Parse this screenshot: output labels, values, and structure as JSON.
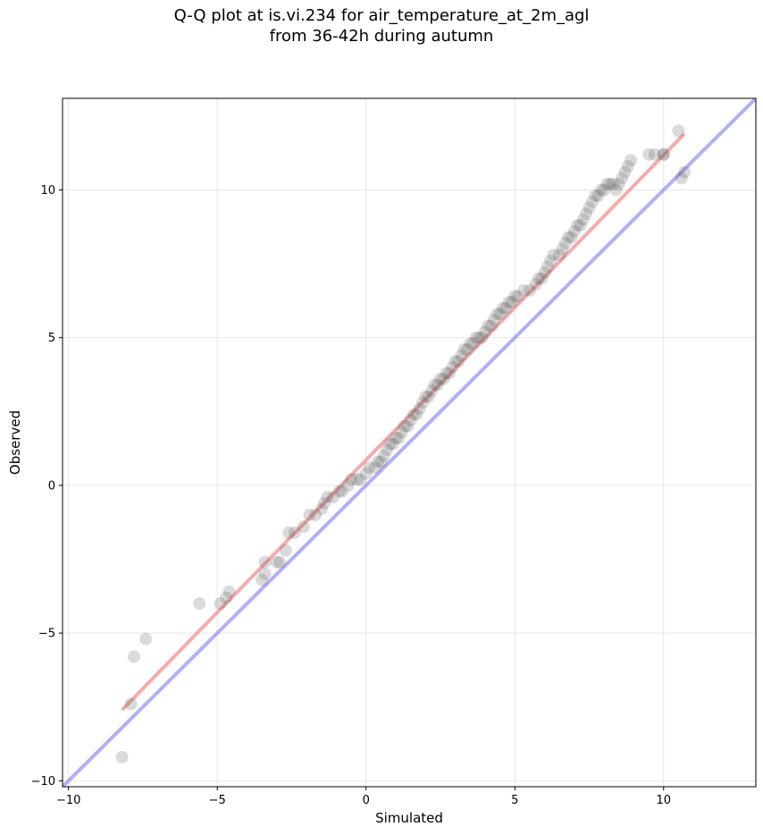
{
  "chart_data": {
    "type": "scatter",
    "title": "Q-Q plot at is.vi.234 for air_temperature_at_2m_agl",
    "subtitle": "from 36-42h during autumn",
    "xlabel": "Simulated",
    "ylabel": "Observed",
    "xlim": [
      -10.2,
      13.1
    ],
    "ylim": [
      -10.2,
      13.1
    ],
    "x_ticks": [
      -10,
      -5,
      0,
      5,
      10
    ],
    "y_ticks": [
      -10,
      -5,
      0,
      5,
      10
    ],
    "x_tick_labels": [
      "−10",
      "−5",
      "0",
      "5",
      "10"
    ],
    "y_tick_labels": [
      "−10",
      "−5",
      "0",
      "5",
      "10"
    ],
    "grid": true,
    "colors": {
      "points": "#555555",
      "fit_line": "#f08080",
      "identity_line": "#7b7bf0",
      "grid": "#e6e6e6"
    },
    "identity_line": {
      "from": [
        -10.2,
        -10.2
      ],
      "to": [
        13.1,
        13.1
      ]
    },
    "fit_line": {
      "from": [
        -8.2,
        -7.6
      ],
      "to": [
        10.7,
        11.9
      ]
    },
    "points": {
      "x": [
        -8.2,
        -7.9,
        -7.8,
        -7.4,
        -5.6,
        -4.9,
        -4.7,
        -4.6,
        -3.5,
        -3.4,
        -3.4,
        -3.0,
        -2.9,
        -2.7,
        -2.6,
        -2.4,
        -2.1,
        -1.9,
        -1.7,
        -1.5,
        -1.4,
        -1.3,
        -1.1,
        -0.9,
        -0.8,
        -0.6,
        -0.5,
        -0.3,
        -0.2,
        0.0,
        0.1,
        0.3,
        0.4,
        0.5,
        0.6,
        0.7,
        0.8,
        0.9,
        1.0,
        1.1,
        1.2,
        1.3,
        1.4,
        1.5,
        1.6,
        1.7,
        1.8,
        1.9,
        2.0,
        2.1,
        2.2,
        2.3,
        2.4,
        2.5,
        2.6,
        2.7,
        2.8,
        2.9,
        3.0,
        3.1,
        3.2,
        3.3,
        3.4,
        3.5,
        3.6,
        3.7,
        3.8,
        3.9,
        4.0,
        4.1,
        4.2,
        4.3,
        4.4,
        4.5,
        4.6,
        4.7,
        4.8,
        4.9,
        5.0,
        5.1,
        5.3,
        5.5,
        5.7,
        5.8,
        5.9,
        6.0,
        6.1,
        6.2,
        6.3,
        6.5,
        6.6,
        6.7,
        6.8,
        6.9,
        7.0,
        7.1,
        7.2,
        7.3,
        7.4,
        7.5,
        7.6,
        7.7,
        7.8,
        7.9,
        8.0,
        8.1,
        8.2,
        8.3,
        8.4,
        8.5,
        8.6,
        8.7,
        8.8,
        8.9,
        9.5,
        9.7,
        10.0,
        10.0,
        10.5,
        10.6,
        10.7
      ],
      "y": [
        -9.2,
        -7.4,
        -5.8,
        -5.2,
        -4.0,
        -4.0,
        -3.8,
        -3.6,
        -3.2,
        -3.0,
        -2.6,
        -2.6,
        -2.6,
        -2.2,
        -1.6,
        -1.6,
        -1.4,
        -1.0,
        -1.0,
        -0.8,
        -0.6,
        -0.4,
        -0.4,
        -0.2,
        -0.2,
        0.0,
        0.2,
        0.2,
        0.2,
        0.4,
        0.6,
        0.6,
        0.8,
        0.8,
        1.0,
        1.2,
        1.4,
        1.4,
        1.6,
        1.6,
        1.8,
        2.0,
        2.0,
        2.2,
        2.4,
        2.4,
        2.6,
        2.8,
        3.0,
        3.0,
        3.2,
        3.4,
        3.4,
        3.6,
        3.6,
        3.8,
        3.8,
        4.0,
        4.2,
        4.2,
        4.4,
        4.6,
        4.6,
        4.8,
        4.8,
        5.0,
        5.0,
        5.0,
        5.2,
        5.4,
        5.4,
        5.6,
        5.8,
        5.8,
        6.0,
        6.0,
        6.2,
        6.2,
        6.4,
        6.4,
        6.6,
        6.6,
        6.8,
        7.0,
        7.0,
        7.2,
        7.4,
        7.6,
        7.8,
        7.8,
        8.0,
        8.2,
        8.4,
        8.4,
        8.6,
        8.8,
        8.8,
        9.0,
        9.2,
        9.4,
        9.6,
        9.8,
        9.8,
        10.0,
        10.0,
        10.2,
        10.2,
        10.2,
        10.0,
        10.2,
        10.4,
        10.6,
        10.8,
        11.0,
        11.2,
        11.2,
        11.2,
        11.2,
        12.0,
        10.4,
        10.6
      ]
    }
  }
}
